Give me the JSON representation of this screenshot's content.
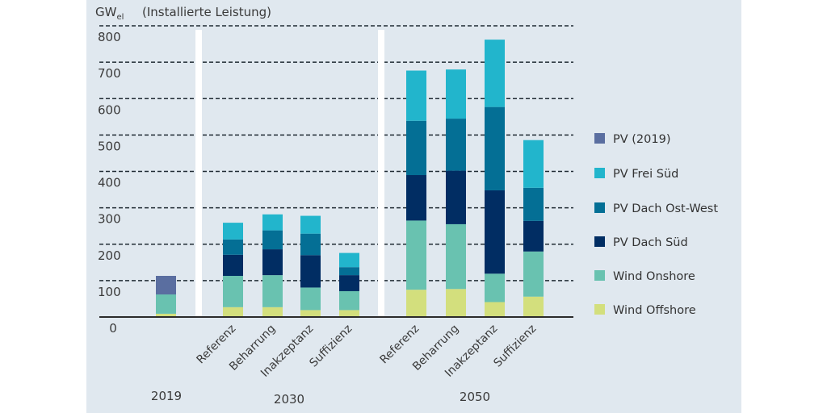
{
  "chart_data": {
    "type": "bar",
    "stacked": true,
    "title": "",
    "ylabel": "GWel",
    "ylabel_main": "GW",
    "ylabel_sub": "el",
    "ylabel_note": "(Installierte Leistung)",
    "xlabel": "",
    "ylim": [
      0,
      800
    ],
    "yticks": [
      0,
      100,
      200,
      300,
      400,
      500,
      600,
      700,
      800
    ],
    "grid": true,
    "legend_position": "right",
    "groups": [
      {
        "label": "2019",
        "categories": [
          ""
        ]
      },
      {
        "label": "2030",
        "categories": [
          "Referenz",
          "Beharrung",
          "Inakzeptanz",
          "Suffizienz"
        ]
      },
      {
        "label": "2050",
        "categories": [
          "Referenz",
          "Beharrung",
          "Inakzeptanz",
          "Suffizienz"
        ]
      }
    ],
    "categories": [
      "2019",
      "2030 Referenz",
      "2030 Beharrung",
      "2030 Inakzeptanz",
      "2030 Suffizienz",
      "2050 Referenz",
      "2050 Beharrung",
      "2050 Inakzeptanz",
      "2050 Suffizienz"
    ],
    "series": [
      {
        "name": "Wind Offshore",
        "color": "#d3df7d",
        "values": [
          9,
          27,
          27,
          19,
          19,
          75,
          77,
          41,
          56
        ]
      },
      {
        "name": "Wind Onshore",
        "color": "#69c2b0",
        "values": [
          53,
          86,
          88,
          62,
          52,
          190,
          178,
          78,
          124
        ]
      },
      {
        "name": "PV Dach Süd",
        "color": "#012d63",
        "values": [
          0,
          58,
          71,
          89,
          44,
          125,
          147,
          229,
          84
        ]
      },
      {
        "name": "PV Dach Ost-West",
        "color": "#046f95",
        "values": [
          0,
          42,
          52,
          59,
          22,
          149,
          143,
          229,
          91
        ]
      },
      {
        "name": "PV Frei Süd",
        "color": "#22b5cc",
        "values": [
          0,
          46,
          44,
          49,
          39,
          138,
          135,
          185,
          131
        ]
      },
      {
        "name": "PV (2019)",
        "color": "#5a6ea0",
        "values": [
          51,
          0,
          0,
          0,
          0,
          0,
          0,
          0,
          0
        ]
      }
    ],
    "legend_order": [
      "PV (2019)",
      "PV Frei Süd",
      "PV Dach Ost-West",
      "PV Dach Süd",
      "Wind Onshore",
      "Wind Offshore"
    ]
  }
}
